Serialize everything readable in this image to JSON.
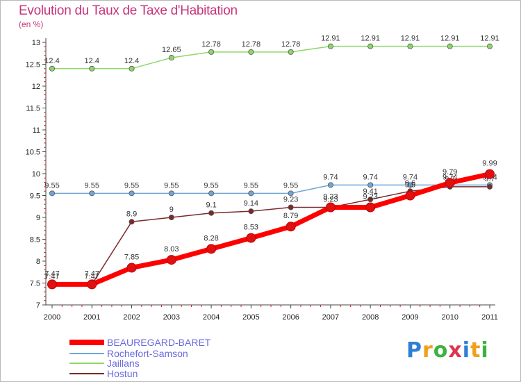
{
  "title": "Evolution du Taux de Taxe d'Habitation",
  "unit": "(en %)",
  "brand": {
    "letters": [
      "P",
      "r",
      "o",
      "x",
      "i",
      "t",
      "i"
    ],
    "colors": [
      "#2e7fd4",
      "#f0a020",
      "#3cb340",
      "#e0334d",
      "#2e7fd4",
      "#f0a020",
      "#3cb340"
    ]
  },
  "chart_data": {
    "type": "line",
    "x": [
      2000,
      2001,
      2002,
      2003,
      2004,
      2005,
      2006,
      2007,
      2008,
      2009,
      2010,
      2011
    ],
    "y_ticks": [
      "7",
      "7.5",
      "8",
      "8.5",
      "9",
      "9.5",
      "10",
      "10.5",
      "11",
      "11.5",
      "12",
      "12.5",
      "13"
    ],
    "ylim": [
      7,
      13
    ],
    "grid": false,
    "legend_position": "bottom-left",
    "series": [
      {
        "name": "BEAUREGARD-BARET",
        "color": "#ff0000",
        "values": [
          7.47,
          7.47,
          7.85,
          8.03,
          8.28,
          8.53,
          8.79,
          9.23,
          9.23,
          9.5,
          9.79,
          9.99
        ],
        "labels": [
          "7.47",
          "7.47",
          "7.85",
          "8.03",
          "8.28",
          "8.53",
          "8.79",
          "9.23",
          "9.23",
          "9.5",
          "9.79",
          "9.99"
        ]
      },
      {
        "name": "Rochefort-Samson",
        "color": "#6ea6d8",
        "values": [
          9.55,
          9.55,
          9.55,
          9.55,
          9.55,
          9.55,
          9.55,
          9.74,
          9.74,
          9.74,
          9.74,
          9.74
        ],
        "labels": [
          "9.55",
          "9.55",
          "9.55",
          "9.55",
          "9.55",
          "9.55",
          "9.55",
          "9.74",
          "9.74",
          "9.74",
          "9.74",
          "9.74"
        ]
      },
      {
        "name": "Jaillans",
        "color": "#8fd66a",
        "values": [
          12.4,
          12.4,
          12.4,
          12.65,
          12.78,
          12.78,
          12.78,
          12.91,
          12.91,
          12.91,
          12.91,
          12.91
        ],
        "labels": [
          "12.4",
          "12.4",
          "12.4",
          "12.65",
          "12.78",
          "12.78",
          "12.78",
          "12.91",
          "12.91",
          "12.91",
          "12.91",
          "12.91"
        ]
      },
      {
        "name": "Hostun",
        "color": "#7a2a2a",
        "values": [
          7.47,
          7.47,
          8.9,
          9.0,
          9.1,
          9.14,
          9.23,
          9.23,
          9.41,
          9.6,
          9.7,
          9.7
        ],
        "labels": [
          "7.47",
          "7.47",
          "8.9",
          "9",
          "9.1",
          "9.14",
          "9.23",
          "9.23",
          "9.41",
          "9.6",
          "9.7",
          "9.7"
        ]
      }
    ]
  }
}
